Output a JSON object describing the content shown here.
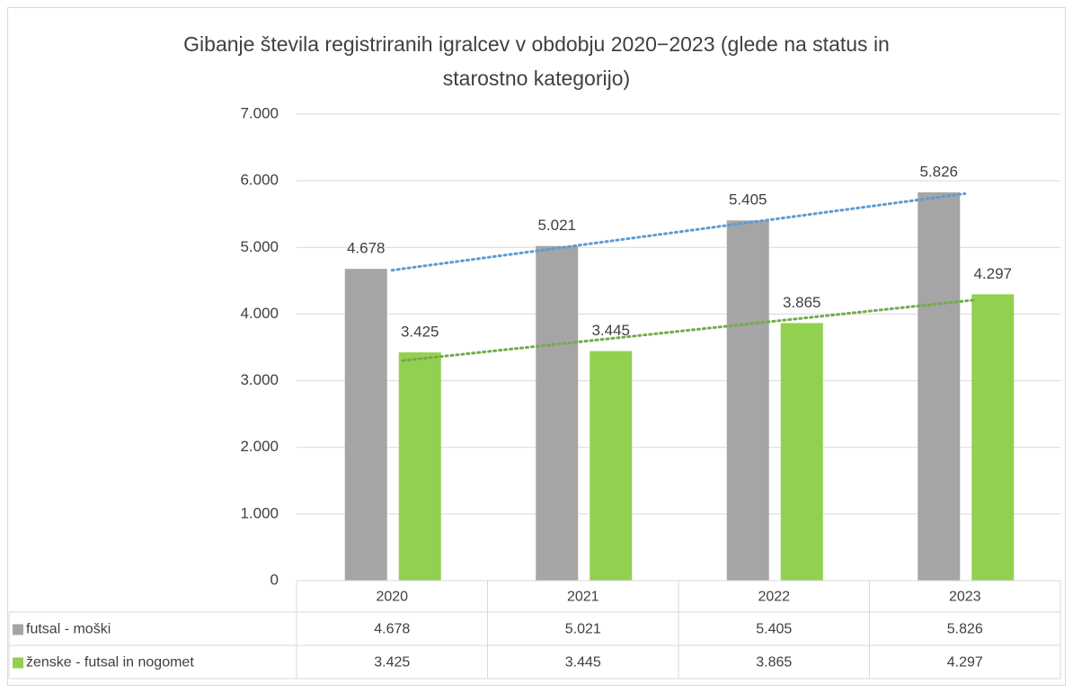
{
  "chart_data": {
    "type": "bar",
    "title": [
      "Gibanje števila registriranih igralcev v obdobju 2020−2023 (glede na status in",
      "starostno kategorijo)"
    ],
    "categories": [
      "2020",
      "2021",
      "2022",
      "2023"
    ],
    "series": [
      {
        "name": "futsal - moški",
        "color": "#a5a5a5",
        "trendline_color": "#5b9bd5",
        "values": [
          4678,
          5021,
          5405,
          5826
        ],
        "value_labels": [
          "4.678",
          "5.021",
          "5.405",
          "5.826"
        ]
      },
      {
        "name": "ženske - futsal in nogomet",
        "color": "#92d050",
        "trendline_color": "#70ad47",
        "values": [
          3425,
          3445,
          3865,
          4297
        ],
        "value_labels": [
          "3.425",
          "3.445",
          "3.865",
          "4.297"
        ]
      }
    ],
    "ylim": [
      0,
      7000
    ],
    "yticks": [
      0,
      {
        "value": 1000,
        "label": "1.000"
      },
      {
        "value": 2000,
        "label": "2.000"
      },
      {
        "value": 3000,
        "label": "3.000"
      },
      {
        "value": 4000,
        "label": "4.000"
      },
      {
        "value": 5000,
        "label": "5.000"
      },
      {
        "value": 6000,
        "label": "6.000"
      },
      {
        "value": 7000,
        "label": "7.000"
      }
    ],
    "grid": true,
    "trendline": "linear",
    "data_table": true
  }
}
